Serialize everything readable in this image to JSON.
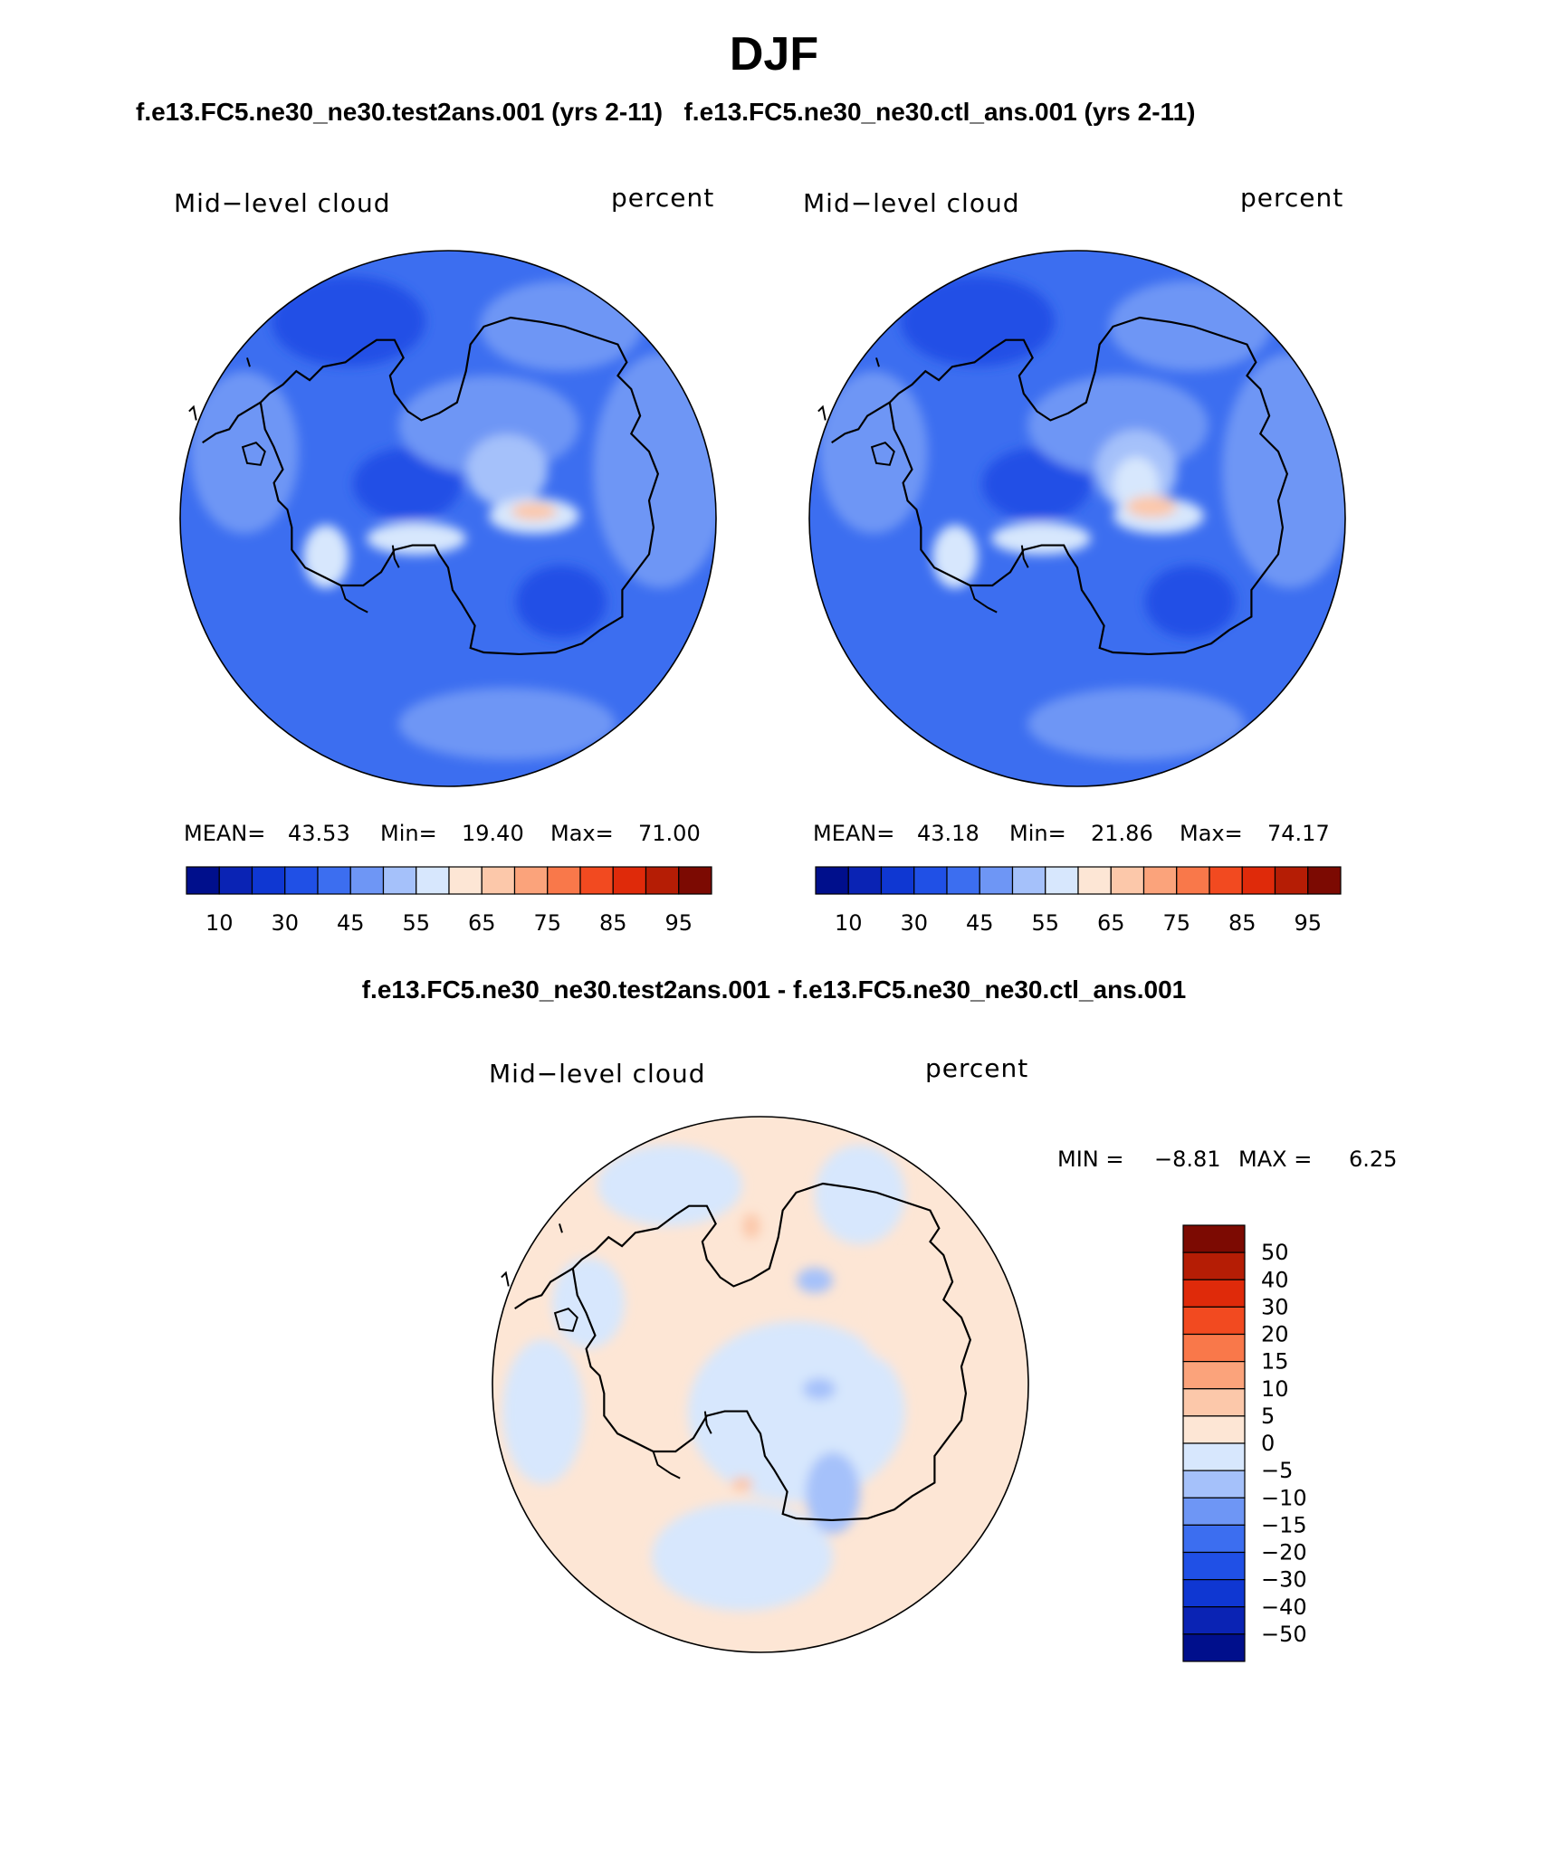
{
  "page": {
    "title": "DJF",
    "case_title": "f.e13.FC5.ne30_ne30.test2ans.001 (yrs 2-11)   f.e13.FC5.ne30_ne30.ctl_ans.001 (yrs 2-11)",
    "diff_title": "f.e13.FC5.ne30_ne30.test2ans.001 - f.e13.FC5.ne30_ne30.ctl_ans.001"
  },
  "panels": [
    {
      "name": "Mid−level cloud",
      "units": "percent",
      "mean_label": "MEAN=",
      "mean": "43.53",
      "min_label": "Min=",
      "min": "19.40",
      "max_label": "Max=",
      "max": "71.00"
    },
    {
      "name": "Mid−level cloud",
      "units": "percent",
      "mean_label": "MEAN=",
      "mean": "43.18",
      "min_label": "Min=",
      "min": "21.86",
      "max_label": "Max=",
      "max": "74.17"
    },
    {
      "name": "Mid−level cloud",
      "units": "percent",
      "min_label": "MIN =",
      "min": "−8.81",
      "max_label": "MAX =",
      "max": "6.25"
    }
  ],
  "abs_colorbar": {
    "colors": [
      "#000f8c",
      "#0a23b4",
      "#0f37d2",
      "#2050e6",
      "#3c6ef0",
      "#6e96f5",
      "#a5c1fa",
      "#d7e7fd",
      "#fde6d5",
      "#fcc8aa",
      "#fba37b",
      "#f9784a",
      "#f24a20",
      "#df2a0a",
      "#b51d05",
      "#7c0a02"
    ],
    "tick_labels": [
      "10",
      "30",
      "45",
      "55",
      "65",
      "75",
      "85",
      "95"
    ]
  },
  "diff_colorbar": {
    "colors": [
      "#7c0a02",
      "#b51d05",
      "#df2a0a",
      "#f24a20",
      "#f9784a",
      "#fba37b",
      "#fcc8aa",
      "#fde6d5",
      "#d7e7fd",
      "#a5c1fa",
      "#6e96f5",
      "#3c6ef0",
      "#2050e6",
      "#0f37d2",
      "#0a23b4",
      "#000f8c"
    ],
    "tick_labels": [
      "50",
      "40",
      "30",
      "20",
      "15",
      "10",
      "5",
      "0",
      "−5",
      "−10",
      "−15",
      "−20",
      "−30",
      "−40",
      "−50"
    ]
  },
  "chart_data": [
    {
      "type": "heatmap",
      "title": "Mid−level cloud",
      "units": "percent",
      "projection": "south polar stereographic",
      "levels": [
        10,
        15,
        20,
        25,
        30,
        35,
        40,
        45,
        50,
        55,
        60,
        65,
        70,
        75,
        80,
        85,
        90,
        95
      ],
      "stats": {
        "mean": 43.53,
        "min": 19.4,
        "max": 71.0
      }
    },
    {
      "type": "heatmap",
      "title": "Mid−level cloud",
      "units": "percent",
      "projection": "south polar stereographic",
      "levels": [
        10,
        15,
        20,
        25,
        30,
        35,
        40,
        45,
        50,
        55,
        60,
        65,
        70,
        75,
        80,
        85,
        90,
        95
      ],
      "stats": {
        "mean": 43.18,
        "min": 21.86,
        "max": 74.17
      }
    },
    {
      "type": "heatmap",
      "title": "Mid−level cloud",
      "units": "percent",
      "projection": "south polar stereographic",
      "levels": [
        -50,
        -40,
        -30,
        -20,
        -15,
        -10,
        -5,
        0,
        5,
        10,
        15,
        20,
        30,
        40,
        50
      ],
      "stats": {
        "min": -8.81,
        "max": 6.25
      }
    }
  ]
}
